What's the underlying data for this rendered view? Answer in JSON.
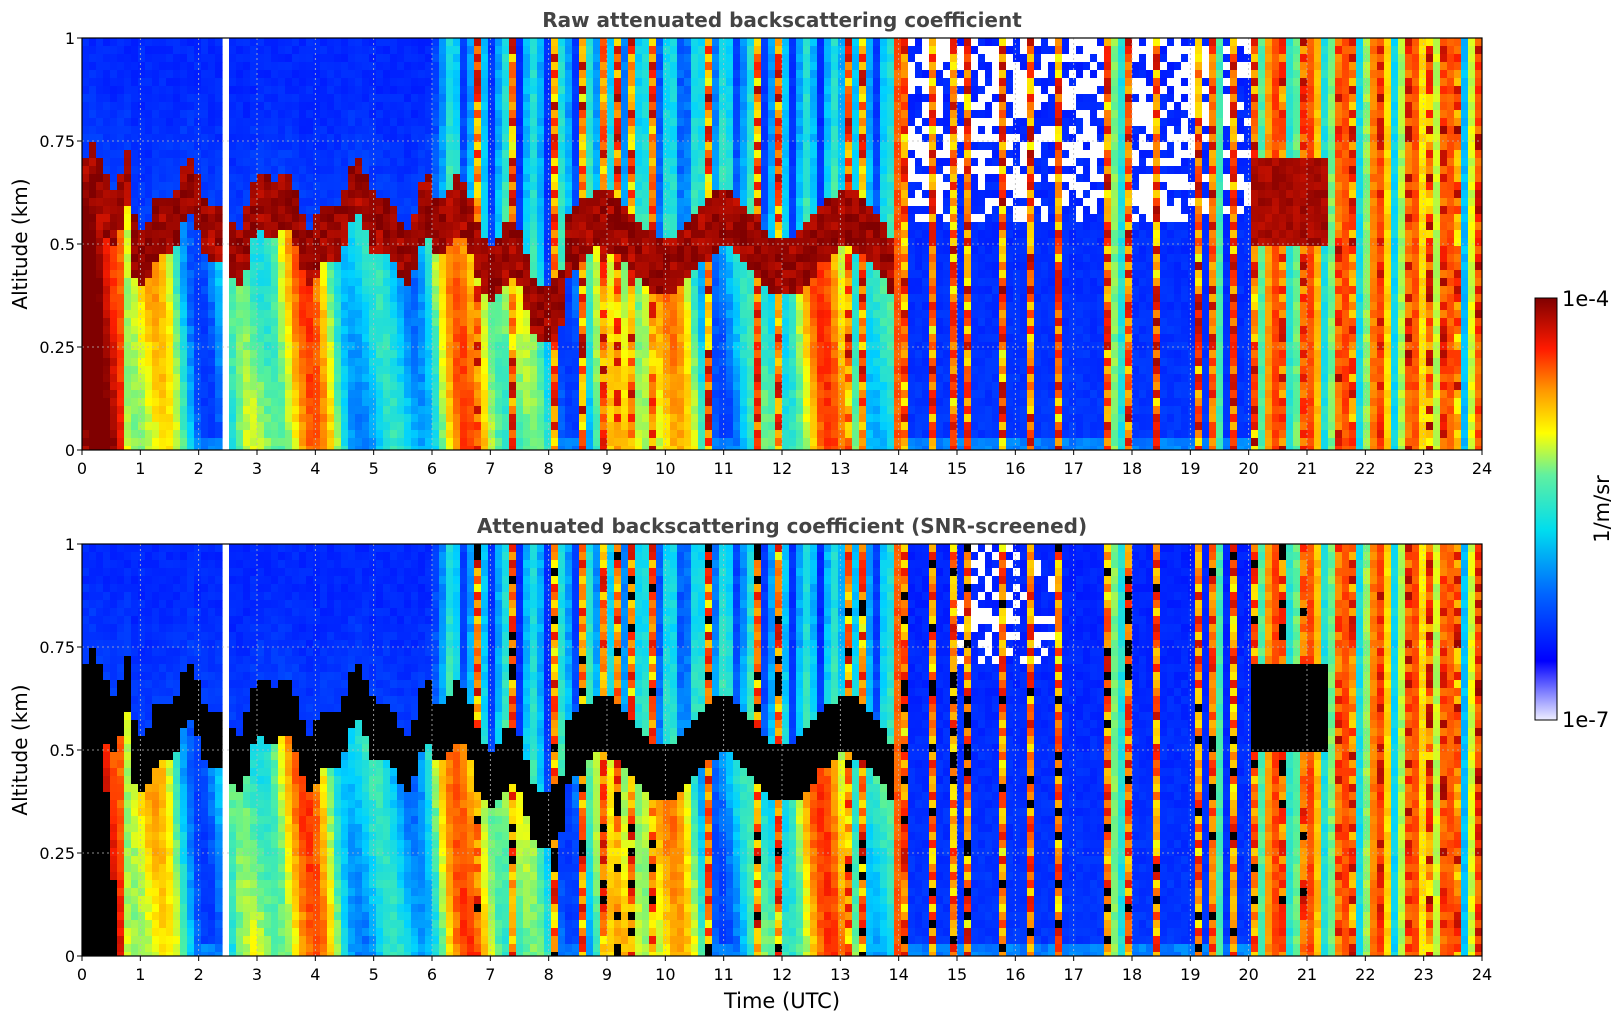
{
  "chart_data": [
    {
      "type": "heatmap",
      "title": "Raw attenuated backscattering coefficient",
      "xlabel": "",
      "ylabel": "Altitude (km)",
      "xlim": [
        0,
        24
      ],
      "ylim": [
        0,
        1
      ],
      "xticks": [
        "0",
        "1",
        "2",
        "3",
        "4",
        "5",
        "6",
        "7",
        "8",
        "9",
        "10",
        "11",
        "12",
        "13",
        "14",
        "15",
        "16",
        "17",
        "18",
        "19",
        "20",
        "21",
        "22",
        "23",
        "24"
      ],
      "yticks": [
        "0",
        "0.25",
        "0.5",
        "0.75",
        "1"
      ],
      "grid": true,
      "gap_hours": [
        2.45,
        2.55
      ],
      "screened": false
    },
    {
      "type": "heatmap",
      "title": "Attenuated backscattering coefficient (SNR-screened)",
      "xlabel": "Time (UTC)",
      "ylabel": "Altitude (km)",
      "xlim": [
        0,
        24
      ],
      "ylim": [
        0,
        1
      ],
      "xticks": [
        "0",
        "1",
        "2",
        "3",
        "4",
        "5",
        "6",
        "7",
        "8",
        "9",
        "10",
        "11",
        "12",
        "13",
        "14",
        "15",
        "16",
        "17",
        "18",
        "19",
        "20",
        "21",
        "22",
        "23",
        "24"
      ],
      "yticks": [
        "0",
        "0.25",
        "0.5",
        "0.75",
        "1"
      ],
      "grid": true,
      "gap_hours": [
        2.45,
        2.55
      ],
      "screened": true
    }
  ],
  "colorbar": {
    "label": "1/m/sr",
    "max_label": "1e-4",
    "min_label": "1e-7",
    "scale": "log",
    "colormap": [
      "#e8e8ff",
      "#0000ff",
      "#00e5ff",
      "#ffff00",
      "#ff7f00",
      "#e00000",
      "#800000"
    ]
  }
}
